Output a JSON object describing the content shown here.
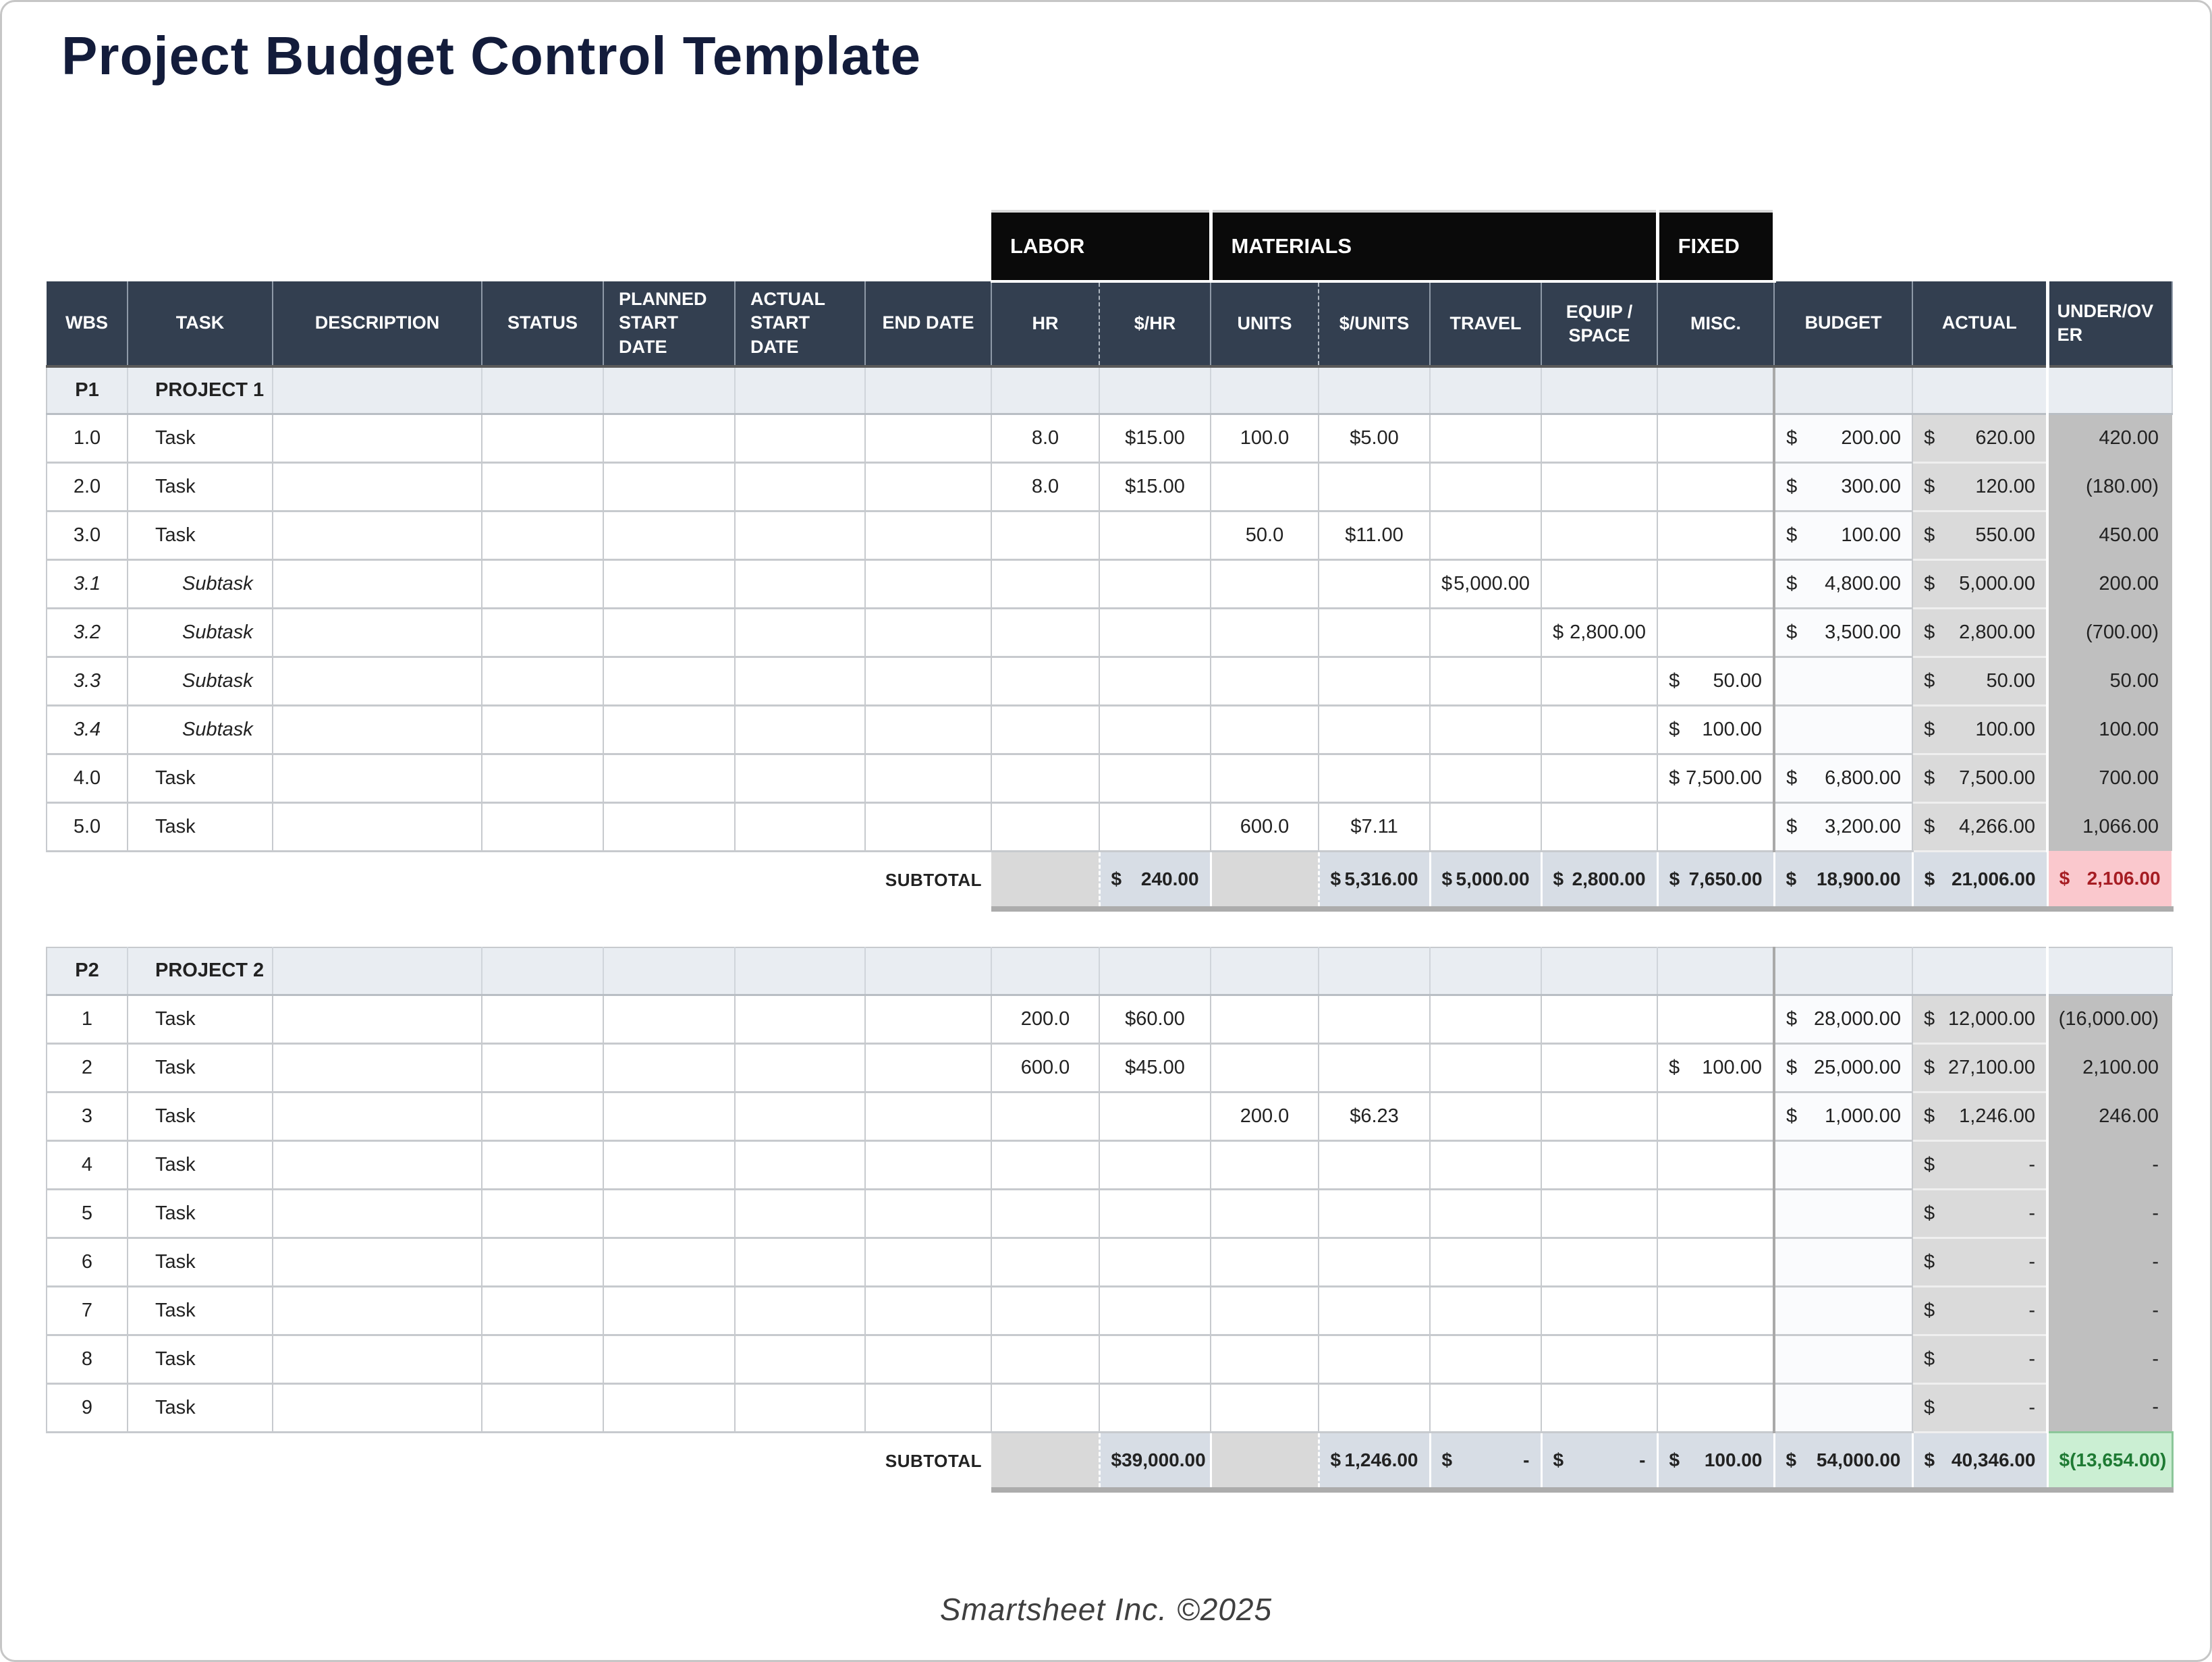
{
  "page": {
    "title": "Project Budget Control Template",
    "footer": "Smartsheet Inc. ©2025"
  },
  "colors": {
    "title_text": "#131C3B",
    "group_header_bg": "#0A0A0A",
    "column_header_bg": "#333F50",
    "project_row_bg": "#E9EDF2",
    "actual_col_bg": "#D9D9D9",
    "variance_col_bg": "#BFBFBF",
    "subtotal_bg": "#D7DDE5",
    "over_budget_bg": "#FAC8CD",
    "over_budget_text": "#A61D23",
    "under_budget_bg": "#CBEFD3",
    "under_budget_text": "#1E7A33"
  },
  "table": {
    "currency": "$",
    "subtotal_label": "SUBTOTAL",
    "group_headers": [
      {
        "label": "LABOR",
        "span": 2
      },
      {
        "label": "MATERIALS",
        "span": 4
      },
      {
        "label": "FIXED",
        "span": 1
      }
    ],
    "columns": [
      "WBS",
      "TASK",
      "DESCRIPTION",
      "STATUS",
      "PLANNED START DATE",
      "ACTUAL START DATE",
      "END DATE",
      "HR",
      "$/HR",
      "UNITS",
      "$/UNITS",
      "TRAVEL",
      "EQUIP / SPACE",
      "MISC.",
      "BUDGET",
      "ACTUAL",
      "UNDER/OVER"
    ],
    "projects": [
      {
        "id": "P1",
        "name": "PROJECT 1",
        "rows": [
          {
            "wbs": "1.0",
            "task": "Task",
            "style": "task",
            "hr": "8.0",
            "rate": "$15.00",
            "units": "100.0",
            "ucost": "$5.00",
            "travel": "",
            "equip": "",
            "misc": "",
            "budget": "200.00",
            "actual": "620.00",
            "varn": "420.00"
          },
          {
            "wbs": "2.0",
            "task": "Task",
            "style": "task",
            "hr": "8.0",
            "rate": "$15.00",
            "units": "",
            "ucost": "",
            "travel": "",
            "equip": "",
            "misc": "",
            "budget": "300.00",
            "actual": "120.00",
            "varn": "(180.00)"
          },
          {
            "wbs": "3.0",
            "task": "Task",
            "style": "task",
            "hr": "",
            "rate": "",
            "units": "50.0",
            "ucost": "$11.00",
            "travel": "",
            "equip": "",
            "misc": "",
            "budget": "100.00",
            "actual": "550.00",
            "varn": "450.00"
          },
          {
            "wbs": "3.1",
            "task": "Subtask",
            "style": "subtask",
            "hr": "",
            "rate": "",
            "units": "",
            "ucost": "",
            "travel": "5,000.00",
            "equip": "",
            "misc": "",
            "budget": "4,800.00",
            "actual": "5,000.00",
            "varn": "200.00"
          },
          {
            "wbs": "3.2",
            "task": "Subtask",
            "style": "subtask",
            "hr": "",
            "rate": "",
            "units": "",
            "ucost": "",
            "travel": "",
            "equip": "2,800.00",
            "misc": "",
            "budget": "3,500.00",
            "actual": "2,800.00",
            "varn": "(700.00)"
          },
          {
            "wbs": "3.3",
            "task": "Subtask",
            "style": "subtask",
            "hr": "",
            "rate": "",
            "units": "",
            "ucost": "",
            "travel": "",
            "equip": "",
            "misc": "50.00",
            "budget": "",
            "actual": "50.00",
            "varn": "50.00"
          },
          {
            "wbs": "3.4",
            "task": "Subtask",
            "style": "subtask",
            "hr": "",
            "rate": "",
            "units": "",
            "ucost": "",
            "travel": "",
            "equip": "",
            "misc": "100.00",
            "budget": "",
            "actual": "100.00",
            "varn": "100.00"
          },
          {
            "wbs": "4.0",
            "task": "Task",
            "style": "task",
            "hr": "",
            "rate": "",
            "units": "",
            "ucost": "",
            "travel": "",
            "equip": "",
            "misc": "7,500.00",
            "budget": "6,800.00",
            "actual": "7,500.00",
            "varn": "700.00"
          },
          {
            "wbs": "5.0",
            "task": "Task",
            "style": "task",
            "hr": "",
            "rate": "",
            "units": "600.0",
            "ucost": "$7.11",
            "travel": "",
            "equip": "",
            "misc": "",
            "budget": "3,200.00",
            "actual": "4,266.00",
            "varn": "1,066.00"
          }
        ],
        "subtotal": {
          "rate": "240.00",
          "ucost": "5,316.00",
          "travel": "5,000.00",
          "equip": "2,800.00",
          "misc": "7,650.00",
          "budget": "18,900.00",
          "actual": "21,006.00",
          "varn": "2,106.00",
          "varn_style": "over"
        }
      },
      {
        "id": "P2",
        "name": "PROJECT 2",
        "rows": [
          {
            "wbs": "1",
            "task": "Task",
            "style": "task",
            "hr": "200.0",
            "rate": "$60.00",
            "units": "",
            "ucost": "",
            "travel": "",
            "equip": "",
            "misc": "",
            "budget": "28,000.00",
            "actual": "12,000.00",
            "varn": "(16,000.00)"
          },
          {
            "wbs": "2",
            "task": "Task",
            "style": "task",
            "hr": "600.0",
            "rate": "$45.00",
            "units": "",
            "ucost": "",
            "travel": "",
            "equip": "",
            "misc": "100.00",
            "budget": "25,000.00",
            "actual": "27,100.00",
            "varn": "2,100.00"
          },
          {
            "wbs": "3",
            "task": "Task",
            "style": "task",
            "hr": "",
            "rate": "",
            "units": "200.0",
            "ucost": "$6.23",
            "travel": "",
            "equip": "",
            "misc": "",
            "budget": "1,000.00",
            "actual": "1,246.00",
            "varn": "246.00"
          },
          {
            "wbs": "4",
            "task": "Task",
            "style": "task",
            "hr": "",
            "rate": "",
            "units": "",
            "ucost": "",
            "travel": "",
            "equip": "",
            "misc": "",
            "budget": "",
            "actual": "-",
            "varn": "-"
          },
          {
            "wbs": "5",
            "task": "Task",
            "style": "task",
            "hr": "",
            "rate": "",
            "units": "",
            "ucost": "",
            "travel": "",
            "equip": "",
            "misc": "",
            "budget": "",
            "actual": "-",
            "varn": "-"
          },
          {
            "wbs": "6",
            "task": "Task",
            "style": "task",
            "hr": "",
            "rate": "",
            "units": "",
            "ucost": "",
            "travel": "",
            "equip": "",
            "misc": "",
            "budget": "",
            "actual": "-",
            "varn": "-"
          },
          {
            "wbs": "7",
            "task": "Task",
            "style": "task",
            "hr": "",
            "rate": "",
            "units": "",
            "ucost": "",
            "travel": "",
            "equip": "",
            "misc": "",
            "budget": "",
            "actual": "-",
            "varn": "-"
          },
          {
            "wbs": "8",
            "task": "Task",
            "style": "task",
            "hr": "",
            "rate": "",
            "units": "",
            "ucost": "",
            "travel": "",
            "equip": "",
            "misc": "",
            "budget": "",
            "actual": "-",
            "varn": "-"
          },
          {
            "wbs": "9",
            "task": "Task",
            "style": "task",
            "hr": "",
            "rate": "",
            "units": "",
            "ucost": "",
            "travel": "",
            "equip": "",
            "misc": "",
            "budget": "",
            "actual": "-",
            "varn": "-"
          }
        ],
        "subtotal": {
          "rate": "39,000.00",
          "ucost": "1,246.00",
          "travel": "-",
          "equip": "-",
          "misc": "100.00",
          "budget": "54,000.00",
          "actual": "40,346.00",
          "varn": "(13,654.00)",
          "varn_style": "under"
        }
      }
    ]
  }
}
